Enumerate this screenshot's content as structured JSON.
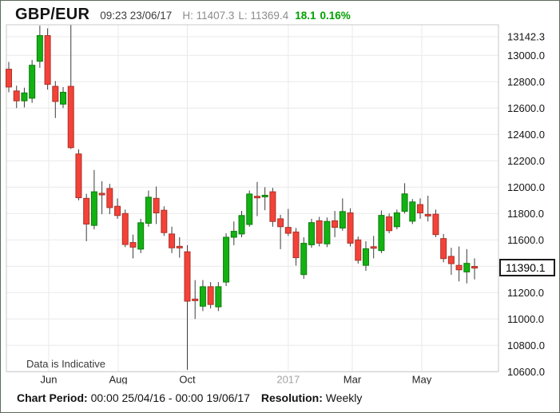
{
  "header": {
    "symbol": "GBP/EUR",
    "timestamp": "09:23 23/06/17",
    "high": "H: 11407.3",
    "low": "L: 11369.4",
    "change": "18.1",
    "change_pct": "0.16%"
  },
  "footer": {
    "chart_period_label": "Chart Period:",
    "chart_period_value": " 00:00 25/04/16 - 00:00 19/06/17",
    "resolution_label": "Resolution:",
    "resolution_value": " Weekly"
  },
  "colors": {
    "up": "#12b212",
    "up_border": "#0c7c0c",
    "down": "#f44238",
    "down_border": "#aa322a",
    "wick": "#3c3c3c",
    "grid": "#e9e9e9",
    "plot_border": "#c9c9c9",
    "change_text": "#00a100"
  },
  "chart_data": {
    "type": "candlestick",
    "title": "GBP/EUR weekly candlestick chart",
    "resolution": "Weekly",
    "period_start": "25/04/16",
    "period_end": "19/06/17",
    "watermark": "Data is Indicative",
    "current_price": 11390.1,
    "current_price_label": "11390.1",
    "y_ticks": [
      {
        "value": 13142.3,
        "label": "13142.3"
      },
      {
        "value": 13000,
        "label": "13000.0"
      },
      {
        "value": 12800,
        "label": "12800.0"
      },
      {
        "value": 12600,
        "label": "12600.0"
      },
      {
        "value": 12400,
        "label": "12400.0"
      },
      {
        "value": 12200,
        "label": "12200.0"
      },
      {
        "value": 12000,
        "label": "12000.0"
      },
      {
        "value": 11800,
        "label": "11800.0"
      },
      {
        "value": 11600,
        "label": "11600.0"
      },
      {
        "value": 11400,
        "label": null
      },
      {
        "value": 11200,
        "label": "11200.0"
      },
      {
        "value": 11000,
        "label": "11000.0"
      },
      {
        "value": 10800,
        "label": "10800.0"
      },
      {
        "value": 10600,
        "label": "10600.0"
      }
    ],
    "x_ticks": [
      {
        "label": "Jun",
        "index": 5.15,
        "muted": false
      },
      {
        "label": "Aug",
        "index": 14.1,
        "muted": false
      },
      {
        "label": "Oct",
        "index": 23.0,
        "muted": false
      },
      {
        "label": "2017",
        "index": 36.0,
        "muted": true
      },
      {
        "label": "Mar",
        "index": 44.25,
        "muted": false
      },
      {
        "label": "May",
        "index": 53.2,
        "muted": false
      }
    ],
    "y_range": [
      10600,
      13232
    ],
    "candles_format": "[open, high, low, close]",
    "candles": [
      [
        12895,
        12950,
        12720,
        12760
      ],
      [
        12730,
        12770,
        12600,
        12655
      ],
      [
        12655,
        12755,
        12605,
        12715
      ],
      [
        12675,
        12965,
        12640,
        12925
      ],
      [
        12955,
        13225,
        12905,
        13150
      ],
      [
        13150,
        13205,
        12740,
        12780
      ],
      [
        12765,
        12805,
        12525,
        12650
      ],
      [
        12630,
        12760,
        12600,
        12720
      ],
      [
        12765,
        13230,
        12290,
        12300
      ],
      [
        12252,
        12287,
        11900,
        11920
      ],
      [
        11915,
        11950,
        11590,
        11720
      ],
      [
        11710,
        12130,
        11680,
        11965
      ],
      [
        11950,
        12045,
        11795,
        11945
      ],
      [
        11990,
        12025,
        11795,
        11845
      ],
      [
        11855,
        11915,
        11760,
        11785
      ],
      [
        11800,
        11830,
        11545,
        11565
      ],
      [
        11580,
        11640,
        11460,
        11545
      ],
      [
        11530,
        11760,
        11500,
        11730
      ],
      [
        11726,
        11974,
        11700,
        11924
      ],
      [
        11915,
        12005,
        11720,
        11805
      ],
      [
        11825,
        11855,
        11630,
        11655
      ],
      [
        11645,
        11700,
        11500,
        11540
      ],
      [
        11550,
        11620,
        11465,
        11540
      ],
      [
        11510,
        11560,
        10615,
        11135
      ],
      [
        11150,
        11295,
        11000,
        11140
      ],
      [
        11097,
        11295,
        11060,
        11245
      ],
      [
        11245,
        11280,
        11080,
        11110
      ],
      [
        11092,
        11280,
        11060,
        11245
      ],
      [
        11280,
        11650,
        11250,
        11620
      ],
      [
        11620,
        11740,
        11560,
        11665
      ],
      [
        11645,
        11820,
        11620,
        11785
      ],
      [
        11717,
        11975,
        11700,
        11948
      ],
      [
        11930,
        12040,
        11780,
        11920
      ],
      [
        11930,
        12000,
        11825,
        11935
      ],
      [
        11965,
        11995,
        11700,
        11740
      ],
      [
        11760,
        11790,
        11530,
        11700
      ],
      [
        11695,
        11835,
        11630,
        11650
      ],
      [
        11660,
        11690,
        11405,
        11465
      ],
      [
        11337,
        11620,
        11305,
        11574
      ],
      [
        11563,
        11760,
        11540,
        11731
      ],
      [
        11745,
        11775,
        11550,
        11575
      ],
      [
        11570,
        11770,
        11545,
        11740
      ],
      [
        11745,
        11820,
        11620,
        11695
      ],
      [
        11690,
        11915,
        11670,
        11815
      ],
      [
        11805,
        11840,
        11550,
        11575
      ],
      [
        11600,
        11625,
        11420,
        11445
      ],
      [
        11407,
        11590,
        11365,
        11533
      ],
      [
        11545,
        11630,
        11460,
        11540
      ],
      [
        11519,
        11823,
        11500,
        11786
      ],
      [
        11775,
        11800,
        11650,
        11670
      ],
      [
        11700,
        11830,
        11680,
        11805
      ],
      [
        11817,
        12030,
        11800,
        11949
      ],
      [
        11742,
        11910,
        11720,
        11888
      ],
      [
        11868,
        11915,
        11760,
        11805
      ],
      [
        11790,
        11935,
        11740,
        11785
      ],
      [
        11795,
        11830,
        11620,
        11640
      ],
      [
        11610,
        11645,
        11430,
        11458
      ],
      [
        11475,
        11540,
        11335,
        11420
      ],
      [
        11407,
        11550,
        11285,
        11373
      ],
      [
        11357,
        11530,
        11270,
        11422
      ],
      [
        11395,
        11460,
        11300,
        11390
      ]
    ]
  }
}
